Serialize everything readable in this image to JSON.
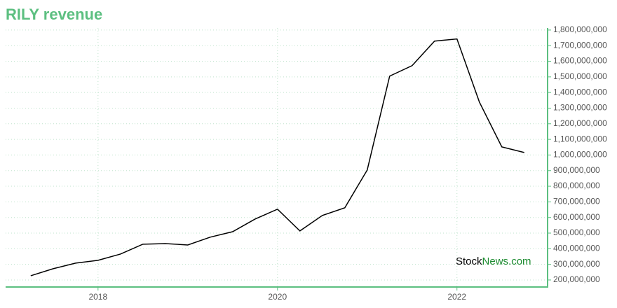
{
  "chart_data": {
    "type": "line",
    "title": "RILY revenue",
    "x": [
      2017.25,
      2017.5,
      2017.75,
      2018.0,
      2018.25,
      2018.5,
      2018.75,
      2019.0,
      2019.25,
      2019.5,
      2019.75,
      2020.0,
      2020.25,
      2020.5,
      2020.75,
      2021.0,
      2021.25,
      2021.5,
      2021.75,
      2022.0,
      2022.25,
      2022.5,
      2022.75
    ],
    "series": [
      {
        "name": "RILY revenue",
        "color": "#000000",
        "values": [
          227000000,
          272000000,
          308000000,
          326000000,
          366000000,
          429000000,
          433000000,
          424000000,
          474000000,
          509000000,
          590000000,
          653000000,
          514000000,
          613000000,
          662000000,
          904000000,
          1505000000,
          1572000000,
          1729000000,
          1743000000,
          1339000000,
          1052000000,
          1016000000
        ]
      }
    ],
    "xlim": [
      2016.97,
      2023.01
    ],
    "xticks": [
      2018,
      2020,
      2022
    ],
    "ylim": [
      155000000,
      1813000000
    ],
    "yticks": [
      {
        "value": 200000000,
        "label": "200,000,000"
      },
      {
        "value": 300000000,
        "label": "300,000,000"
      },
      {
        "value": 400000000,
        "label": "400,000,000"
      },
      {
        "value": 500000000,
        "label": "500,000,000"
      },
      {
        "value": 600000000,
        "label": "600,000,000"
      },
      {
        "value": 700000000,
        "label": "700,000,000"
      },
      {
        "value": 800000000,
        "label": "800,000,000"
      },
      {
        "value": 900000000,
        "label": "900,000,000"
      },
      {
        "value": 1000000000,
        "label": "1,000,000,000"
      },
      {
        "value": 1100000000,
        "label": "1,100,000,000"
      },
      {
        "value": 1200000000,
        "label": "1,200,000,000"
      },
      {
        "value": 1300000000,
        "label": "1,300,000,000"
      },
      {
        "value": 1400000000,
        "label": "1,400,000,000"
      },
      {
        "value": 1500000000,
        "label": "1,500,000,000"
      },
      {
        "value": 1600000000,
        "label": "1,600,000,000"
      },
      {
        "value": 1700000000,
        "label": "1,700,000,000"
      },
      {
        "value": 1800000000,
        "label": "1,800,000,000"
      }
    ],
    "grid": true,
    "watermark": {
      "brand": "Stock",
      "suffix": "News.com"
    }
  }
}
